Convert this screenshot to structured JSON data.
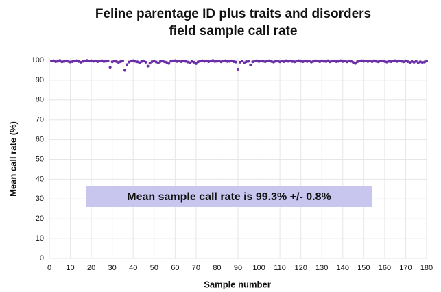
{
  "chart_data": {
    "type": "scatter",
    "title": "Feline parentage ID plus traits and disorders",
    "subtitle": "field sample call rate",
    "x_label": "Sample number",
    "y_label": "Mean call rate (%)",
    "annotation": "Mean sample call rate is 99.3% +/- 0.8%",
    "color": "#6a2fa8",
    "grid": true,
    "xlim": [
      0,
      180
    ],
    "ylim": [
      0,
      100
    ],
    "xticks": [
      0,
      10,
      20,
      30,
      40,
      50,
      60,
      70,
      80,
      90,
      100,
      110,
      120,
      130,
      140,
      150,
      160,
      170,
      180
    ],
    "yticks": [
      0,
      10,
      20,
      30,
      40,
      50,
      60,
      70,
      80,
      90,
      100
    ],
    "x": [
      1,
      2,
      3,
      4,
      5,
      6,
      7,
      8,
      9,
      10,
      11,
      12,
      13,
      14,
      15,
      16,
      17,
      18,
      19,
      20,
      21,
      22,
      23,
      24,
      25,
      26,
      27,
      28,
      29,
      30,
      31,
      32,
      33,
      34,
      35,
      36,
      37,
      38,
      39,
      40,
      41,
      42,
      43,
      44,
      45,
      46,
      47,
      48,
      49,
      50,
      51,
      52,
      53,
      54,
      55,
      56,
      57,
      58,
      59,
      60,
      61,
      62,
      63,
      64,
      65,
      66,
      67,
      68,
      69,
      70,
      71,
      72,
      73,
      74,
      75,
      76,
      77,
      78,
      79,
      80,
      81,
      82,
      83,
      84,
      85,
      86,
      87,
      88,
      89,
      90,
      91,
      92,
      93,
      94,
      95,
      96,
      97,
      98,
      99,
      100,
      101,
      102,
      103,
      104,
      105,
      106,
      107,
      108,
      109,
      110,
      111,
      112,
      113,
      114,
      115,
      116,
      117,
      118,
      119,
      120,
      121,
      122,
      123,
      124,
      125,
      126,
      127,
      128,
      129,
      130,
      131,
      132,
      133,
      134,
      135,
      136,
      137,
      138,
      139,
      140,
      141,
      142,
      143,
      144,
      145,
      146,
      147,
      148,
      149,
      150,
      151,
      152,
      153,
      154,
      155,
      156,
      157,
      158,
      159,
      160,
      161,
      162,
      163,
      164,
      165,
      166,
      167,
      168,
      169,
      170,
      171,
      172,
      173,
      174,
      175,
      176,
      177,
      178,
      179,
      180
    ],
    "values": [
      99.6,
      99.8,
      99.3,
      99.5,
      99.9,
      99.2,
      99.4,
      99.7,
      99.5,
      99.1,
      99.3,
      99.6,
      99.8,
      99.4,
      99.0,
      99.5,
      99.7,
      99.9,
      99.6,
      99.8,
      99.5,
      99.7,
      99.3,
      99.6,
      99.8,
      99.4,
      99.5,
      99.7,
      96.5,
      99.2,
      99.6,
      99.4,
      98.9,
      99.3,
      99.7,
      95.0,
      97.8,
      99.1,
      99.6,
      99.8,
      99.5,
      99.2,
      98.8,
      99.4,
      99.7,
      99.0,
      97.0,
      98.5,
      99.3,
      99.6,
      99.1,
      98.7,
      99.4,
      99.6,
      99.2,
      98.9,
      98.4,
      99.5,
      99.7,
      99.8,
      99.4,
      99.6,
      99.3,
      99.7,
      99.5,
      99.1,
      98.8,
      99.4,
      99.0,
      98.3,
      99.2,
      99.6,
      99.8,
      99.5,
      99.7,
      99.3,
      99.6,
      99.9,
      99.4,
      99.5,
      99.7,
      99.2,
      99.6,
      99.8,
      99.4,
      99.5,
      99.7,
      99.3,
      99.1,
      95.5,
      99.0,
      99.6,
      98.8,
      99.3,
      99.5,
      97.6,
      99.2,
      99.6,
      99.8,
      99.4,
      99.7,
      99.5,
      99.3,
      99.6,
      99.8,
      99.4,
      99.1,
      99.5,
      99.7,
      99.2,
      99.6,
      99.3,
      99.8,
      99.5,
      99.7,
      99.4,
      99.2,
      99.6,
      99.8,
      99.5,
      99.3,
      99.7,
      99.4,
      99.6,
      99.1,
      99.5,
      99.8,
      99.6,
      99.3,
      99.7,
      99.5,
      99.4,
      99.8,
      99.2,
      99.6,
      99.7,
      99.3,
      99.5,
      99.8,
      99.4,
      99.6,
      99.2,
      99.7,
      99.5,
      98.9,
      98.4,
      99.3,
      99.6,
      99.8,
      99.5,
      99.7,
      99.4,
      99.6,
      99.3,
      99.8,
      99.5,
      99.2,
      99.6,
      99.7,
      99.4,
      99.1,
      99.5,
      99.3,
      99.6,
      99.8,
      99.4,
      99.7,
      99.5,
      99.2,
      99.6,
      99.3,
      98.9,
      99.4,
      99.0,
      99.5,
      98.8,
      99.2,
      98.9,
      99.1,
      99.6
    ]
  }
}
